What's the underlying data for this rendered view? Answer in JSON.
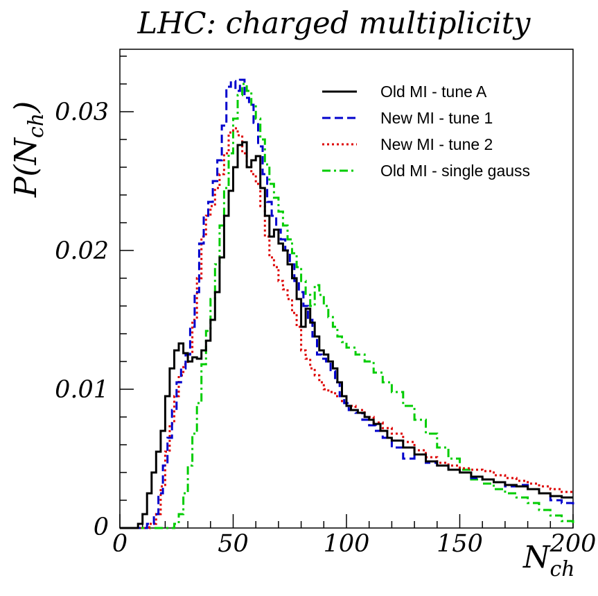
{
  "chart_data": {
    "type": "line",
    "title": "LHC: charged multiplicity",
    "xlabel": "N",
    "xlabel_sub": "ch",
    "ylabel_pre": "P(N",
    "ylabel_sub": "ch",
    "ylabel_post": ")",
    "xlim": [
      0,
      200
    ],
    "ylim": [
      0,
      0.0345
    ],
    "xticks": [
      0,
      50,
      100,
      150,
      200
    ],
    "xtick_labels": [
      "0",
      "50",
      "100",
      "150",
      "200"
    ],
    "yticks": [
      0,
      0.01,
      0.02,
      0.03
    ],
    "ytick_labels": [
      "0",
      "0.01",
      "0.02",
      "0.03"
    ],
    "grid": false,
    "legend_position": "top-right",
    "series": [
      {
        "name": "Old MI - tune A",
        "color": "#000000",
        "dash": "solid",
        "points": [
          [
            0,
            0
          ],
          [
            5,
            0
          ],
          [
            8,
            0.0003
          ],
          [
            10,
            0.001
          ],
          [
            12,
            0.0025
          ],
          [
            14,
            0.004
          ],
          [
            16,
            0.0055
          ],
          [
            18,
            0.007
          ],
          [
            20,
            0.0095
          ],
          [
            22,
            0.0115
          ],
          [
            24,
            0.0128
          ],
          [
            26,
            0.0133
          ],
          [
            28,
            0.0126
          ],
          [
            30,
            0.012
          ],
          [
            32,
            0.0123
          ],
          [
            34,
            0.0122
          ],
          [
            36,
            0.0128
          ],
          [
            38,
            0.0135
          ],
          [
            40,
            0.015
          ],
          [
            42,
            0.017
          ],
          [
            44,
            0.0195
          ],
          [
            46,
            0.0225
          ],
          [
            48,
            0.0243
          ],
          [
            50,
            0.026
          ],
          [
            52,
            0.0276
          ],
          [
            54,
            0.0278
          ],
          [
            56,
            0.026
          ],
          [
            58,
            0.0265
          ],
          [
            60,
            0.0268
          ],
          [
            62,
            0.0245
          ],
          [
            64,
            0.0225
          ],
          [
            66,
            0.021
          ],
          [
            68,
            0.0215
          ],
          [
            70,
            0.0205
          ],
          [
            72,
            0.02
          ],
          [
            74,
            0.019
          ],
          [
            76,
            0.018
          ],
          [
            78,
            0.0165
          ],
          [
            80,
            0.0145
          ],
          [
            82,
            0.0158
          ],
          [
            84,
            0.0148
          ],
          [
            86,
            0.0138
          ],
          [
            88,
            0.0128
          ],
          [
            90,
            0.0125
          ],
          [
            92,
            0.012
          ],
          [
            94,
            0.0115
          ],
          [
            96,
            0.0105
          ],
          [
            98,
            0.0095
          ],
          [
            100,
            0.0088
          ],
          [
            102,
            0.0085
          ],
          [
            105,
            0.0083
          ],
          [
            108,
            0.008
          ],
          [
            110,
            0.0078
          ],
          [
            112,
            0.0075
          ],
          [
            115,
            0.007
          ],
          [
            118,
            0.0065
          ],
          [
            120,
            0.0063
          ],
          [
            125,
            0.0058
          ],
          [
            130,
            0.0053
          ],
          [
            135,
            0.0048
          ],
          [
            140,
            0.0045
          ],
          [
            145,
            0.0042
          ],
          [
            150,
            0.004
          ],
          [
            155,
            0.0037
          ],
          [
            160,
            0.0035
          ],
          [
            165,
            0.0033
          ],
          [
            170,
            0.0031
          ],
          [
            175,
            0.003
          ],
          [
            180,
            0.0028
          ],
          [
            185,
            0.0025
          ],
          [
            190,
            0.0023
          ],
          [
            195,
            0.0022
          ],
          [
            200,
            0.0022
          ]
        ]
      },
      {
        "name": "New MI - tune 1",
        "color": "#0000cc",
        "dash": "dashed",
        "points": [
          [
            0,
            0
          ],
          [
            10,
            0
          ],
          [
            12,
            0.0003
          ],
          [
            15,
            0.001
          ],
          [
            17,
            0.0025
          ],
          [
            19,
            0.0045
          ],
          [
            21,
            0.0065
          ],
          [
            23,
            0.0085
          ],
          [
            25,
            0.0105
          ],
          [
            27,
            0.0115
          ],
          [
            29,
            0.0125
          ],
          [
            31,
            0.0145
          ],
          [
            33,
            0.017
          ],
          [
            35,
            0.0205
          ],
          [
            37,
            0.0225
          ],
          [
            39,
            0.0235
          ],
          [
            41,
            0.025
          ],
          [
            43,
            0.0265
          ],
          [
            45,
            0.029
          ],
          [
            47,
            0.0318
          ],
          [
            49,
            0.0322
          ],
          [
            51,
            0.0315
          ],
          [
            53,
            0.0323
          ],
          [
            55,
            0.031
          ],
          [
            57,
            0.0305
          ],
          [
            59,
            0.0292
          ],
          [
            61,
            0.0275
          ],
          [
            63,
            0.0255
          ],
          [
            65,
            0.0235
          ],
          [
            67,
            0.0225
          ],
          [
            69,
            0.0215
          ],
          [
            71,
            0.0208
          ],
          [
            73,
            0.02
          ],
          [
            75,
            0.019
          ],
          [
            77,
            0.0178
          ],
          [
            79,
            0.017
          ],
          [
            81,
            0.016
          ],
          [
            83,
            0.015
          ],
          [
            85,
            0.0138
          ],
          [
            87,
            0.0125
          ],
          [
            89,
            0.0122
          ],
          [
            91,
            0.012
          ],
          [
            93,
            0.0113
          ],
          [
            95,
            0.0105
          ],
          [
            97,
            0.0095
          ],
          [
            99,
            0.009
          ],
          [
            101,
            0.0085
          ],
          [
            104,
            0.0083
          ],
          [
            107,
            0.0078
          ],
          [
            110,
            0.0074
          ],
          [
            113,
            0.007
          ],
          [
            116,
            0.0065
          ],
          [
            120,
            0.0058
          ],
          [
            125,
            0.005
          ],
          [
            130,
            0.0053
          ],
          [
            135,
            0.0047
          ],
          [
            140,
            0.0045
          ],
          [
            145,
            0.0042
          ],
          [
            150,
            0.004
          ],
          [
            155,
            0.0036
          ],
          [
            160,
            0.0035
          ],
          [
            165,
            0.0033
          ],
          [
            170,
            0.003
          ],
          [
            175,
            0.0031
          ],
          [
            180,
            0.0028
          ],
          [
            185,
            0.0025
          ],
          [
            190,
            0.002
          ],
          [
            195,
            0.0018
          ],
          [
            200,
            0.0017
          ]
        ]
      },
      {
        "name": "New MI - tune 2",
        "color": "#dd0000",
        "dash": "dotted",
        "points": [
          [
            0,
            0
          ],
          [
            11,
            0
          ],
          [
            13,
            0.0003
          ],
          [
            16,
            0.001
          ],
          [
            18,
            0.003
          ],
          [
            20,
            0.0055
          ],
          [
            22,
            0.0075
          ],
          [
            24,
            0.0095
          ],
          [
            26,
            0.011
          ],
          [
            28,
            0.0118
          ],
          [
            30,
            0.0125
          ],
          [
            32,
            0.015
          ],
          [
            34,
            0.018
          ],
          [
            36,
            0.021
          ],
          [
            38,
            0.0225
          ],
          [
            40,
            0.0232
          ],
          [
            42,
            0.0245
          ],
          [
            44,
            0.0255
          ],
          [
            46,
            0.027
          ],
          [
            48,
            0.0285
          ],
          [
            50,
            0.0288
          ],
          [
            52,
            0.0283
          ],
          [
            54,
            0.027
          ],
          [
            56,
            0.026
          ],
          [
            58,
            0.0255
          ],
          [
            60,
            0.0248
          ],
          [
            62,
            0.0232
          ],
          [
            64,
            0.021
          ],
          [
            66,
            0.0195
          ],
          [
            68,
            0.0188
          ],
          [
            70,
            0.0178
          ],
          [
            72,
            0.0172
          ],
          [
            74,
            0.0165
          ],
          [
            76,
            0.0155
          ],
          [
            78,
            0.0145
          ],
          [
            80,
            0.0128
          ],
          [
            82,
            0.0122
          ],
          [
            84,
            0.0115
          ],
          [
            86,
            0.011
          ],
          [
            88,
            0.0105
          ],
          [
            90,
            0.01
          ],
          [
            92,
            0.0098
          ],
          [
            95,
            0.0095
          ],
          [
            98,
            0.009
          ],
          [
            100,
            0.0088
          ],
          [
            104,
            0.0085
          ],
          [
            108,
            0.008
          ],
          [
            112,
            0.0076
          ],
          [
            116,
            0.0072
          ],
          [
            120,
            0.0068
          ],
          [
            125,
            0.0062
          ],
          [
            130,
            0.0056
          ],
          [
            135,
            0.0051
          ],
          [
            140,
            0.0047
          ],
          [
            145,
            0.0045
          ],
          [
            150,
            0.0043
          ],
          [
            155,
            0.0042
          ],
          [
            160,
            0.0041
          ],
          [
            165,
            0.0038
          ],
          [
            170,
            0.0036
          ],
          [
            175,
            0.0034
          ],
          [
            180,
            0.0032
          ],
          [
            185,
            0.003
          ],
          [
            190,
            0.0028
          ],
          [
            195,
            0.0026
          ],
          [
            200,
            0.0025
          ]
        ]
      },
      {
        "name": "Old MI - single gauss",
        "color": "#00cc00",
        "dash": "dashdot",
        "points": [
          [
            0,
            0
          ],
          [
            22,
            0
          ],
          [
            24,
            0.0003
          ],
          [
            26,
            0.001
          ],
          [
            28,
            0.0025
          ],
          [
            30,
            0.0045
          ],
          [
            32,
            0.0068
          ],
          [
            34,
            0.009
          ],
          [
            36,
            0.0118
          ],
          [
            38,
            0.0142
          ],
          [
            40,
            0.0165
          ],
          [
            42,
            0.019
          ],
          [
            44,
            0.0218
          ],
          [
            46,
            0.0245
          ],
          [
            48,
            0.027
          ],
          [
            50,
            0.0295
          ],
          [
            52,
            0.0312
          ],
          [
            54,
            0.032
          ],
          [
            56,
            0.0315
          ],
          [
            58,
            0.0305
          ],
          [
            60,
            0.0295
          ],
          [
            62,
            0.028
          ],
          [
            64,
            0.0262
          ],
          [
            66,
            0.0248
          ],
          [
            68,
            0.0238
          ],
          [
            70,
            0.0228
          ],
          [
            72,
            0.0218
          ],
          [
            74,
            0.0208
          ],
          [
            76,
            0.0198
          ],
          [
            78,
            0.0188
          ],
          [
            80,
            0.0178
          ],
          [
            82,
            0.0168
          ],
          [
            84,
            0.016
          ],
          [
            86,
            0.0175
          ],
          [
            88,
            0.0168
          ],
          [
            90,
            0.016
          ],
          [
            92,
            0.0152
          ],
          [
            94,
            0.0145
          ],
          [
            96,
            0.0138
          ],
          [
            98,
            0.0134
          ],
          [
            100,
            0.013
          ],
          [
            104,
            0.0125
          ],
          [
            108,
            0.012
          ],
          [
            112,
            0.0112
          ],
          [
            116,
            0.0105
          ],
          [
            120,
            0.0098
          ],
          [
            125,
            0.0088
          ],
          [
            130,
            0.0078
          ],
          [
            135,
            0.0068
          ],
          [
            140,
            0.0058
          ],
          [
            145,
            0.005
          ],
          [
            150,
            0.0042
          ],
          [
            155,
            0.0035
          ],
          [
            160,
            0.0032
          ],
          [
            165,
            0.0028
          ],
          [
            170,
            0.0025
          ],
          [
            175,
            0.0022
          ],
          [
            180,
            0.0018
          ],
          [
            185,
            0.0013
          ],
          [
            190,
            0.0009
          ],
          [
            195,
            0.0005
          ],
          [
            200,
            0.0001
          ]
        ]
      }
    ]
  }
}
